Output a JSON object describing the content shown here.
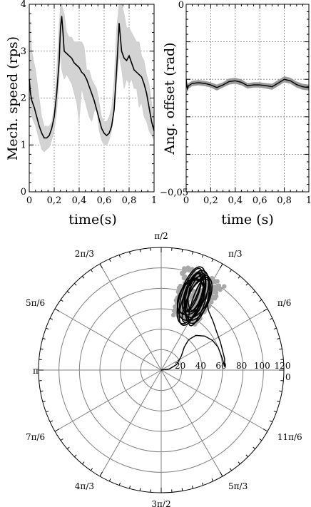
{
  "chart_data": [
    {
      "type": "line",
      "xlabel": "time(s)",
      "ylabel": "Mech. speed (rps)",
      "xlim": [
        0,
        1
      ],
      "ylim": [
        0,
        4
      ],
      "x_ticks": [
        "0",
        "0,2",
        "0,4",
        "0,6",
        "0,8",
        "1"
      ],
      "y_ticks": [
        "0",
        "1",
        "2",
        "3",
        "4"
      ],
      "grid": true,
      "series": [
        {
          "style": "envelope",
          "color": "#d3d3d3",
          "x": [
            0,
            0.02,
            0.05,
            0.08,
            0.1,
            0.12,
            0.14,
            0.16,
            0.18,
            0.2,
            0.22,
            0.24,
            0.25,
            0.26,
            0.28,
            0.3,
            0.32,
            0.34,
            0.36,
            0.38,
            0.4,
            0.42,
            0.44,
            0.46,
            0.48,
            0.5,
            0.52,
            0.54,
            0.56,
            0.58,
            0.6,
            0.62,
            0.64,
            0.66,
            0.68,
            0.7,
            0.72,
            0.74,
            0.76,
            0.78,
            0.8,
            0.82,
            0.84,
            0.86,
            0.88,
            0.9,
            0.92,
            0.94,
            0.96,
            0.98,
            1.0
          ],
          "lower": [
            1.7,
            1.6,
            1.4,
            1.1,
            0.9,
            0.85,
            0.9,
            0.95,
            1.1,
            1.3,
            1.7,
            2.4,
            3.0,
            2.6,
            2.4,
            2.5,
            2.4,
            2.3,
            2.1,
            1.9,
            1.5,
            2.2,
            2.0,
            1.8,
            1.6,
            1.5,
            1.7,
            1.8,
            1.3,
            1.1,
            1.0,
            1.0,
            1.1,
            1.3,
            1.7,
            2.3,
            2.9,
            2.6,
            2.2,
            2.4,
            2.3,
            2.4,
            2.2,
            2.2,
            1.8,
            1.9,
            1.6,
            1.5,
            1.3,
            1.2,
            1.1
          ],
          "upper": [
            4.0,
            3.0,
            2.6,
            2.0,
            1.6,
            1.4,
            1.4,
            1.4,
            1.5,
            1.8,
            2.6,
            3.6,
            4.0,
            4.0,
            3.8,
            3.4,
            3.3,
            3.3,
            3.2,
            3.2,
            3.2,
            3.2,
            3.1,
            2.6,
            2.6,
            2.4,
            2.3,
            2.2,
            1.9,
            1.6,
            1.5,
            1.5,
            1.6,
            1.8,
            2.4,
            3.5,
            4.0,
            4.0,
            3.8,
            3.5,
            3.5,
            3.4,
            3.3,
            3.2,
            3.2,
            2.9,
            2.8,
            2.5,
            2.3,
            1.9,
            1.6
          ]
        },
        {
          "style": "line",
          "color": "#000000",
          "x": [
            0,
            0.01,
            0.02,
            0.04,
            0.06,
            0.08,
            0.1,
            0.12,
            0.14,
            0.16,
            0.18,
            0.2,
            0.22,
            0.24,
            0.25,
            0.26,
            0.27,
            0.28,
            0.3,
            0.32,
            0.34,
            0.36,
            0.38,
            0.4,
            0.42,
            0.44,
            0.46,
            0.48,
            0.5,
            0.52,
            0.54,
            0.56,
            0.58,
            0.6,
            0.62,
            0.64,
            0.66,
            0.68,
            0.7,
            0.71,
            0.72,
            0.74,
            0.76,
            0.78,
            0.8,
            0.82,
            0.84,
            0.86,
            0.88,
            0.9,
            0.92,
            0.94,
            0.96,
            0.98,
            1.0
          ],
          "y": [
            2.4,
            2.1,
            1.95,
            1.8,
            1.6,
            1.4,
            1.25,
            1.15,
            1.15,
            1.2,
            1.35,
            1.6,
            2.1,
            2.8,
            3.5,
            3.75,
            3.4,
            3.0,
            2.95,
            2.9,
            2.85,
            2.75,
            2.7,
            2.65,
            2.55,
            2.5,
            2.4,
            2.25,
            2.1,
            1.95,
            1.75,
            1.55,
            1.35,
            1.25,
            1.2,
            1.25,
            1.4,
            1.75,
            2.6,
            3.1,
            3.6,
            3.0,
            2.85,
            2.8,
            2.9,
            2.75,
            2.6,
            2.55,
            2.5,
            2.45,
            2.3,
            2.1,
            1.8,
            1.5,
            1.3
          ]
        }
      ]
    },
    {
      "type": "line",
      "xlabel": "time (s)",
      "ylabel": "Ang. offset (rad)",
      "xlim": [
        0,
        1
      ],
      "ylim": [
        -0.05,
        0
      ],
      "x_ticks": [
        "0",
        "0,2",
        "0,4",
        "0,6",
        "0,8",
        "1"
      ],
      "y_ticks_printed": [
        "0",
        "−0,05"
      ],
      "grid": true,
      "series": [
        {
          "style": "envelope",
          "color": "#9a9a9a",
          "x": [
            0,
            0.01,
            0.02,
            0.05,
            0.1,
            0.15,
            0.2,
            0.25,
            0.3,
            0.35,
            0.4,
            0.45,
            0.5,
            0.55,
            0.6,
            0.65,
            0.7,
            0.75,
            0.8,
            0.85,
            0.9,
            0.95,
            1.0
          ],
          "lower": [
            -0.0215,
            -0.0235,
            -0.0225,
            -0.0218,
            -0.0216,
            -0.0218,
            -0.0222,
            -0.023,
            -0.0222,
            -0.0214,
            -0.0212,
            -0.0216,
            -0.0225,
            -0.0222,
            -0.0222,
            -0.0225,
            -0.0228,
            -0.0218,
            -0.0208,
            -0.0212,
            -0.0222,
            -0.0228,
            -0.023
          ],
          "upper": [
            -0.019,
            -0.0215,
            -0.021,
            -0.0204,
            -0.0202,
            -0.0204,
            -0.0208,
            -0.0214,
            -0.0208,
            -0.0198,
            -0.0196,
            -0.02,
            -0.021,
            -0.0208,
            -0.0208,
            -0.021,
            -0.0212,
            -0.0202,
            -0.0192,
            -0.0196,
            -0.0206,
            -0.0212,
            -0.0214
          ]
        },
        {
          "style": "line",
          "color": "#000000",
          "x": [
            0,
            0.01,
            0.02,
            0.05,
            0.1,
            0.15,
            0.2,
            0.25,
            0.3,
            0.35,
            0.4,
            0.45,
            0.5,
            0.55,
            0.6,
            0.65,
            0.7,
            0.75,
            0.8,
            0.85,
            0.9,
            0.95,
            1.0
          ],
          "y": [
            -0.02,
            -0.0225,
            -0.0217,
            -0.0211,
            -0.0209,
            -0.0211,
            -0.0215,
            -0.0222,
            -0.0215,
            -0.0206,
            -0.0204,
            -0.0208,
            -0.0217,
            -0.0215,
            -0.0215,
            -0.0217,
            -0.022,
            -0.021,
            -0.02,
            -0.0204,
            -0.0214,
            -0.022,
            -0.0222
          ]
        }
      ]
    },
    {
      "type": "polar",
      "rlim": [
        0,
        120
      ],
      "r_ticks": [
        "20",
        "40",
        "60",
        "80",
        "100",
        "120"
      ],
      "angle_labels": [
        "0",
        "π/6",
        "π/3",
        "π/2",
        "2π/3",
        "5π/6",
        "π",
        "7π/6",
        "4π/3",
        "3π/2",
        "5π/3",
        "11π/6"
      ],
      "series": [
        {
          "style": "start-trajectory",
          "color": "#000000",
          "r": [
            0,
            8,
            16,
            24,
            32,
            40,
            48,
            54,
            58,
            60,
            61,
            62,
            63,
            64,
            66,
            68,
            70,
            72,
            74,
            76,
            79,
            82,
            86,
            90
          ],
          "theta_deg": [
            0,
            8,
            20,
            35,
            45,
            48,
            45,
            38,
            30,
            22,
            10,
            3,
            10,
            25,
            35,
            40,
            44,
            48,
            51,
            53,
            55,
            56,
            57,
            58
          ]
        },
        {
          "style": "cluster-halo",
          "color": "#a8a8a8",
          "r_range": [
            55,
            105
          ],
          "theta_range_deg": [
            53,
            78
          ]
        },
        {
          "style": "cluster-loops",
          "color": "#000000",
          "r_range": [
            60,
            100
          ],
          "theta_range_deg": [
            56,
            75
          ]
        }
      ]
    }
  ]
}
